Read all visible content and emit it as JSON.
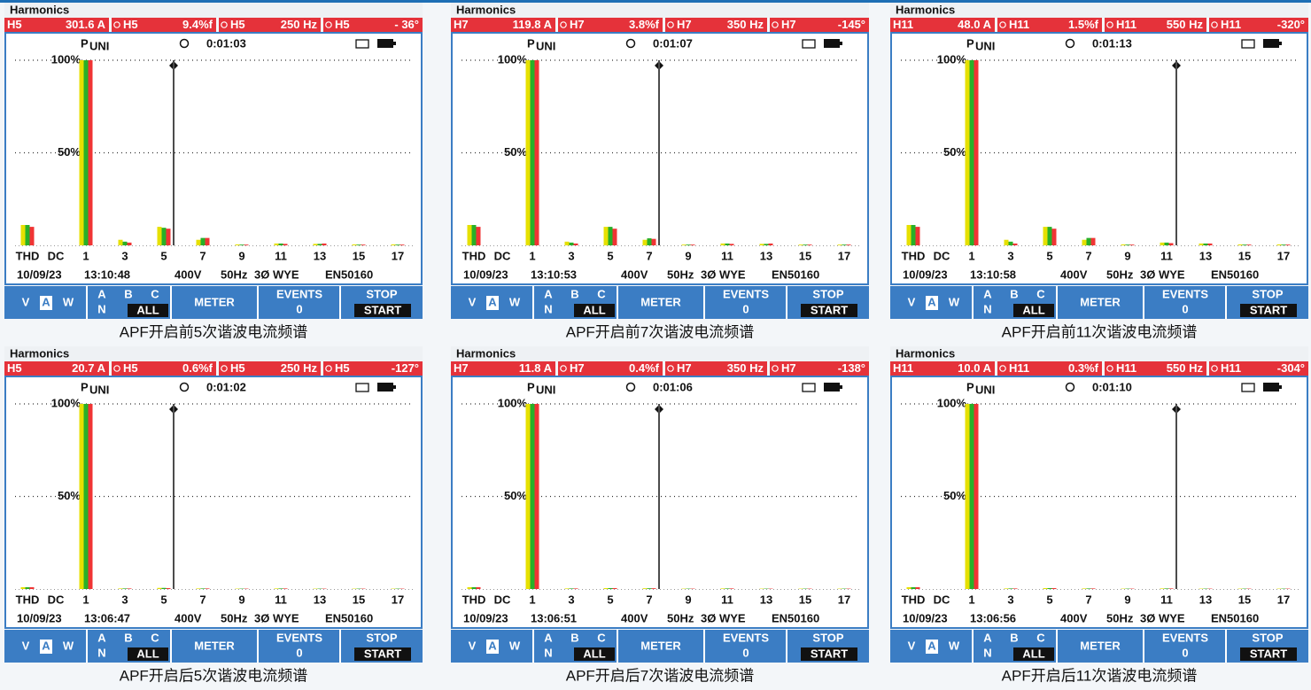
{
  "softkeys": {
    "v": "V",
    "a": "A",
    "w": "W",
    "pa": "A",
    "pb": "B",
    "pc": "C",
    "pn": "N",
    "all": "ALL",
    "meter": "METER",
    "events": "EVENTS",
    "events_count": "0",
    "stop": "STOP",
    "start": "START"
  },
  "chart_data": [
    {
      "type": "bar",
      "title": "Harmonics",
      "readings": [
        {
          "label": "H5",
          "value": "301.6 A"
        },
        {
          "label": "H5",
          "value": "9.4%f"
        },
        {
          "label": "H5",
          "value": "250 Hz"
        },
        {
          "label": "H5",
          "value": "- 36°"
        }
      ],
      "mode": "P",
      "mode_sub": "UNI",
      "timer": "0:01:03",
      "date": "10/09/23",
      "time": "13:10:48",
      "voltage": "400V",
      "frequency": "50Hz",
      "config": "3Ø WYE",
      "standard": "EN50160",
      "caption": "APF开启前5次谐波电流频谱",
      "categories": [
        "THD",
        "DC",
        "1",
        null,
        "3",
        null,
        "5",
        null,
        "7",
        null,
        "9",
        null,
        "11",
        null,
        "13",
        null,
        "15",
        null,
        "17"
      ],
      "ylim": [
        0,
        100
      ],
      "yticks": [
        {
          "value": 50,
          "label": "50%"
        },
        {
          "value": 100,
          "label": "100%"
        }
      ],
      "grid": true,
      "series": [
        {
          "color": "#e6e000",
          "values": [
            11,
            0,
            100,
            0,
            3,
            0,
            10,
            0,
            3,
            0,
            0.5,
            0,
            1,
            0,
            0.8,
            0,
            0.5,
            0,
            0.5
          ]
        },
        {
          "color": "#28b028",
          "values": [
            11,
            0,
            100,
            0,
            2,
            0,
            9.5,
            0,
            4,
            0,
            0.4,
            0,
            1,
            0,
            0.8,
            0,
            0.4,
            0,
            0.4
          ]
        },
        {
          "color": "#f03434",
          "values": [
            10,
            0,
            100,
            0,
            1.5,
            0,
            9,
            0,
            4,
            0,
            0.4,
            0,
            0.8,
            0,
            1,
            0,
            0.4,
            0,
            0.4
          ]
        }
      ]
    },
    {
      "type": "bar",
      "title": "Harmonics",
      "readings": [
        {
          "label": "H7",
          "value": "119.8 A"
        },
        {
          "label": "H7",
          "value": "3.8%f"
        },
        {
          "label": "H7",
          "value": "350 Hz"
        },
        {
          "label": "H7",
          "value": "-145°"
        }
      ],
      "mode": "P",
      "mode_sub": "UNI",
      "timer": "0:01:07",
      "date": "10/09/23",
      "time": "13:10:53",
      "voltage": "400V",
      "frequency": "50Hz",
      "config": "3Ø WYE",
      "standard": "EN50160",
      "caption": "APF开启前7次谐波电流频谱",
      "categories": [
        "THD",
        "DC",
        "1",
        null,
        "3",
        null,
        "5",
        null,
        "7",
        null,
        "9",
        null,
        "11",
        null,
        "13",
        null,
        "15",
        null,
        "17"
      ],
      "ylim": [
        0,
        100
      ],
      "yticks": [
        {
          "value": 50,
          "label": "50%"
        },
        {
          "value": 100,
          "label": "100%"
        }
      ],
      "grid": true,
      "series": [
        {
          "color": "#e6e000",
          "values": [
            11,
            0,
            100,
            0,
            2,
            0,
            10,
            0,
            3,
            0,
            0.4,
            0,
            1,
            0,
            0.8,
            0,
            0.4,
            0,
            0.4
          ]
        },
        {
          "color": "#28b028",
          "values": [
            11,
            0,
            100,
            0,
            1.5,
            0,
            10,
            0,
            3.8,
            0,
            0.4,
            0,
            1,
            0,
            0.8,
            0,
            0.4,
            0,
            0.4
          ]
        },
        {
          "color": "#f03434",
          "values": [
            10,
            0,
            100,
            0,
            1,
            0,
            9,
            0,
            3.5,
            0,
            0.4,
            0,
            0.8,
            0,
            1,
            0,
            0.4,
            0,
            0.4
          ]
        }
      ]
    },
    {
      "type": "bar",
      "title": "Harmonics",
      "readings": [
        {
          "label": "H11",
          "value": "48.0 A"
        },
        {
          "label": "H11",
          "value": "1.5%f"
        },
        {
          "label": "H11",
          "value": "550 Hz"
        },
        {
          "label": "H11",
          "value": "-320°"
        }
      ],
      "mode": "P",
      "mode_sub": "UNI",
      "timer": "0:01:13",
      "date": "10/09/23",
      "time": "13:10:58",
      "voltage": "400V",
      "frequency": "50Hz",
      "config": "3Ø WYE",
      "standard": "EN50160",
      "caption": "APF开启前11次谐波电流频谱",
      "categories": [
        "THD",
        "DC",
        "1",
        null,
        "3",
        null,
        "5",
        null,
        "7",
        null,
        "9",
        null,
        "11",
        null,
        "13",
        null,
        "15",
        null,
        "17"
      ],
      "ylim": [
        0,
        100
      ],
      "yticks": [
        {
          "value": 50,
          "label": "50%"
        },
        {
          "value": 100,
          "label": "100%"
        }
      ],
      "grid": true,
      "series": [
        {
          "color": "#e6e000",
          "values": [
            11,
            0,
            100,
            0,
            3,
            0,
            10,
            0,
            3,
            0,
            0.5,
            0,
            1.5,
            0,
            1,
            0,
            0.5,
            0,
            0.5
          ]
        },
        {
          "color": "#28b028",
          "values": [
            11,
            0,
            100,
            0,
            2,
            0,
            10,
            0,
            4,
            0,
            0.4,
            0,
            1.5,
            0,
            1,
            0,
            0.4,
            0,
            0.4
          ]
        },
        {
          "color": "#f03434",
          "values": [
            10,
            0,
            100,
            0,
            1,
            0,
            9,
            0,
            4,
            0,
            0.4,
            0,
            1.2,
            0,
            1,
            0,
            0.4,
            0,
            0.4
          ]
        }
      ]
    },
    {
      "type": "bar",
      "title": "Harmonics",
      "readings": [
        {
          "label": "H5",
          "value": "20.7 A"
        },
        {
          "label": "H5",
          "value": "0.6%f"
        },
        {
          "label": "H5",
          "value": "250 Hz"
        },
        {
          "label": "H5",
          "value": "-127°"
        }
      ],
      "mode": "P",
      "mode_sub": "UNI",
      "timer": "0:01:02",
      "date": "10/09/23",
      "time": "13:06:47",
      "voltage": "400V",
      "frequency": "50Hz",
      "config": "3Ø WYE",
      "standard": "EN50160",
      "caption": "APF开启后5次谐波电流频谱",
      "categories": [
        "THD",
        "DC",
        "1",
        null,
        "3",
        null,
        "5",
        null,
        "7",
        null,
        "9",
        null,
        "11",
        null,
        "13",
        null,
        "15",
        null,
        "17"
      ],
      "ylim": [
        0,
        100
      ],
      "yticks": [
        {
          "value": 50,
          "label": "50%"
        },
        {
          "value": 100,
          "label": "100%"
        }
      ],
      "grid": true,
      "series": [
        {
          "color": "#e6e000",
          "values": [
            1,
            0,
            100,
            0,
            0.3,
            0,
            0.6,
            0,
            0.3,
            0,
            0.2,
            0,
            0.3,
            0,
            0.2,
            0,
            0.2,
            0,
            0.2
          ]
        },
        {
          "color": "#28b028",
          "values": [
            1,
            0,
            100,
            0,
            0.3,
            0,
            0.6,
            0,
            0.3,
            0,
            0.2,
            0,
            0.3,
            0,
            0.2,
            0,
            0.2,
            0,
            0.2
          ]
        },
        {
          "color": "#f03434",
          "values": [
            1,
            0,
            100,
            0,
            0.3,
            0,
            0.5,
            0,
            0.3,
            0,
            0.2,
            0,
            0.3,
            0,
            0.2,
            0,
            0.2,
            0,
            0.2
          ]
        }
      ]
    },
    {
      "type": "bar",
      "title": "Harmonics",
      "readings": [
        {
          "label": "H7",
          "value": "11.8 A"
        },
        {
          "label": "H7",
          "value": "0.4%f"
        },
        {
          "label": "H7",
          "value": "350 Hz"
        },
        {
          "label": "H7",
          "value": "-138°"
        }
      ],
      "mode": "P",
      "mode_sub": "UNI",
      "timer": "0:01:06",
      "date": "10/09/23",
      "time": "13:06:51",
      "voltage": "400V",
      "frequency": "50Hz",
      "config": "3Ø WYE",
      "standard": "EN50160",
      "caption": "APF开启后7次谐波电流频谱",
      "categories": [
        "THD",
        "DC",
        "1",
        null,
        "3",
        null,
        "5",
        null,
        "7",
        null,
        "9",
        null,
        "11",
        null,
        "13",
        null,
        "15",
        null,
        "17"
      ],
      "ylim": [
        0,
        100
      ],
      "yticks": [
        {
          "value": 50,
          "label": "50%"
        },
        {
          "value": 100,
          "label": "100%"
        }
      ],
      "grid": true,
      "series": [
        {
          "color": "#e6e000",
          "values": [
            1,
            0,
            100,
            0,
            0.3,
            0,
            0.5,
            0,
            0.4,
            0,
            0.2,
            0,
            0.3,
            0,
            0.2,
            0,
            0.2,
            0,
            0.2
          ]
        },
        {
          "color": "#28b028",
          "values": [
            1,
            0,
            100,
            0,
            0.3,
            0,
            0.5,
            0,
            0.4,
            0,
            0.2,
            0,
            0.3,
            0,
            0.2,
            0,
            0.2,
            0,
            0.2
          ]
        },
        {
          "color": "#f03434",
          "values": [
            1,
            0,
            100,
            0,
            0.3,
            0,
            0.5,
            0,
            0.4,
            0,
            0.2,
            0,
            0.3,
            0,
            0.2,
            0,
            0.2,
            0,
            0.2
          ]
        }
      ]
    },
    {
      "type": "bar",
      "title": "Harmonics",
      "readings": [
        {
          "label": "H11",
          "value": "10.0 A"
        },
        {
          "label": "H11",
          "value": "0.3%f"
        },
        {
          "label": "H11",
          "value": "550 Hz"
        },
        {
          "label": "H11",
          "value": "-304°"
        }
      ],
      "mode": "P",
      "mode_sub": "UNI",
      "timer": "0:01:10",
      "date": "10/09/23",
      "time": "13:06:56",
      "voltage": "400V",
      "frequency": "50Hz",
      "config": "3Ø WYE",
      "standard": "EN50160",
      "caption": "APF开启后11次谐波电流频谱",
      "categories": [
        "THD",
        "DC",
        "1",
        null,
        "3",
        null,
        "5",
        null,
        "7",
        null,
        "9",
        null,
        "11",
        null,
        "13",
        null,
        "15",
        null,
        "17"
      ],
      "ylim": [
        0,
        100
      ],
      "yticks": [
        {
          "value": 50,
          "label": "50%"
        },
        {
          "value": 100,
          "label": "100%"
        }
      ],
      "grid": true,
      "series": [
        {
          "color": "#e6e000",
          "values": [
            1,
            0,
            100,
            0,
            0.3,
            0,
            0.5,
            0,
            0.3,
            0,
            0.2,
            0,
            0.3,
            0,
            0.2,
            0,
            0.2,
            0,
            0.2
          ]
        },
        {
          "color": "#28b028",
          "values": [
            1,
            0,
            100,
            0,
            0.3,
            0,
            0.5,
            0,
            0.3,
            0,
            0.2,
            0,
            0.3,
            0,
            0.2,
            0,
            0.2,
            0,
            0.2
          ]
        },
        {
          "color": "#f03434",
          "values": [
            1,
            0,
            100,
            0,
            0.3,
            0,
            0.5,
            0,
            0.3,
            0,
            0.2,
            0,
            0.3,
            0,
            0.2,
            0,
            0.2,
            0,
            0.2
          ]
        }
      ]
    }
  ]
}
